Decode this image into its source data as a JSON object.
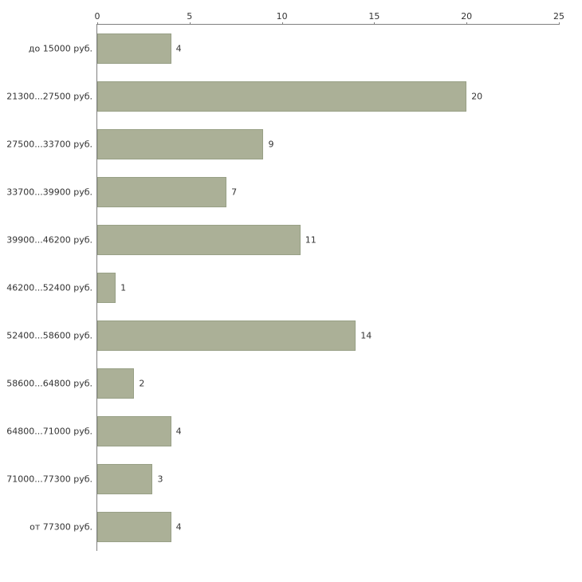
{
  "chart_data": {
    "type": "bar",
    "orientation": "horizontal",
    "title": "",
    "xlabel": "",
    "ylabel": "",
    "categories": [
      "до 15000 руб.",
      "21300...27500 руб.",
      "27500...33700 руб.",
      "33700...39900 руб.",
      "39900...46200 руб.",
      "46200...52400 руб.",
      "52400...58600 руб.",
      "58600...64800 руб.",
      "64800...71000 руб.",
      "71000...77300 руб.",
      "от 77300 руб."
    ],
    "values": [
      4,
      20,
      9,
      7,
      11,
      1,
      14,
      2,
      4,
      3,
      4
    ],
    "xlim": [
      0,
      25
    ],
    "x_ticks": [
      0,
      5,
      10,
      15,
      20,
      25
    ],
    "grid": false,
    "legend": false,
    "value_labels": true,
    "colors": {
      "bar_fill": "#abb097",
      "bar_border": "#98a086",
      "axis": "#7f7f7f",
      "text": "#333333",
      "background": "#ffffff"
    }
  }
}
